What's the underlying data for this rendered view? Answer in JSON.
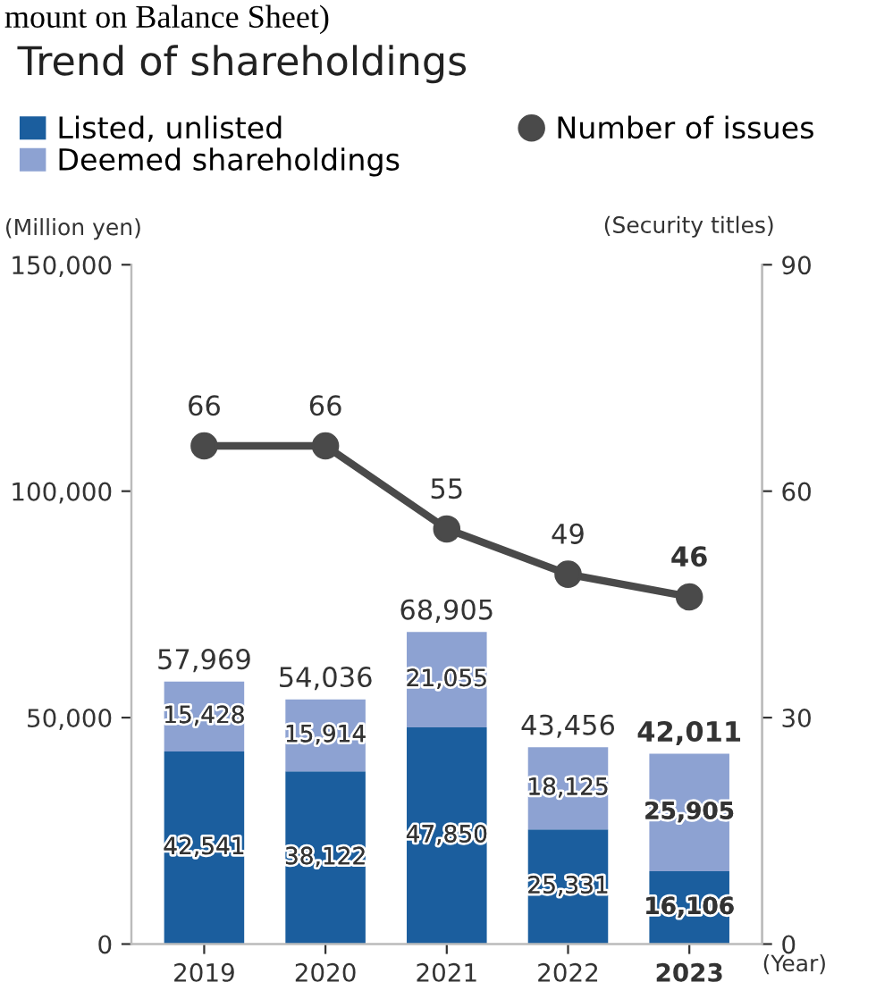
{
  "chart_data": {
    "type": "bar",
    "title": "Trend of shareholdings",
    "annotations": [
      "mount on Balance Sheet)"
    ],
    "ylabel": "(Million yen)",
    "y2label": "(Security titles)",
    "xlabel": "(Year)",
    "categories": [
      "2019",
      "2020",
      "2021",
      "2022",
      "2023"
    ],
    "stacked": true,
    "legend": "top",
    "grid": false,
    "ylim": [
      0,
      150000
    ],
    "yticks": [
      0,
      {
        "value": 50000,
        "label": "50,000"
      },
      {
        "value": 100000,
        "label": "100,000"
      },
      {
        "value": 150000,
        "label": "150,000"
      }
    ],
    "y2lim": [
      0,
      90
    ],
    "y2ticks": [
      0,
      30,
      60,
      90
    ],
    "series": [
      {
        "name": "Listed, unlisted",
        "color": "#1b5e9e",
        "values": [
          42541,
          38122,
          47850,
          25331,
          16106
        ],
        "value_labels": [
          "42,541",
          "38,122",
          "47,850",
          "25,331",
          "16,106"
        ]
      },
      {
        "name": "Deemed shareholdings",
        "color": "#8da2d2",
        "values": [
          15428,
          15914,
          21055,
          18125,
          25905
        ],
        "value_labels": [
          "15,428",
          "15,914",
          "21,055",
          "18,125",
          "25,905"
        ]
      },
      {
        "name": "Number of issues",
        "type": "line",
        "axis": "y2",
        "color": "#4a4a4a",
        "marker": "circle",
        "line_style": "solid",
        "values": [
          66,
          66,
          55,
          49,
          46
        ],
        "value_labels": [
          "66",
          "66",
          "55",
          "49",
          "46"
        ]
      }
    ],
    "totals": [
      "57,969",
      "54,036",
      "68,905",
      "43,456",
      "42,011"
    ]
  }
}
